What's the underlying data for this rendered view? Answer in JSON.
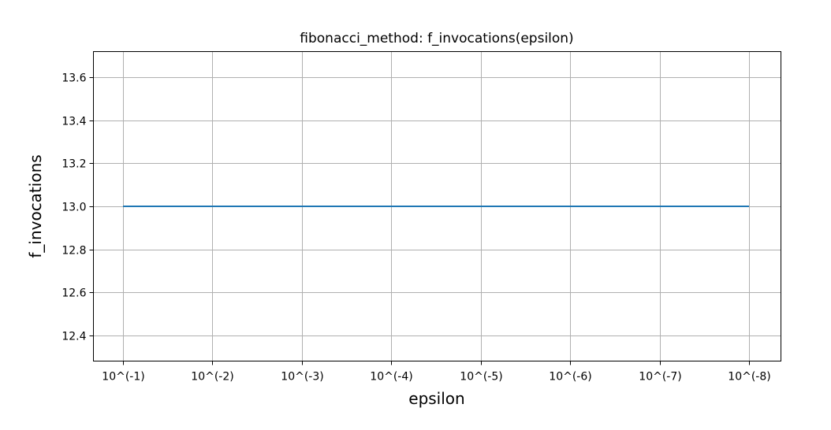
{
  "chart_data": {
    "type": "line",
    "title": "fibonacci_method: f_invocations(epsilon)",
    "xlabel": "epsilon",
    "ylabel": "f_invocations",
    "categories": [
      "10^(-1)",
      "10^(-2)",
      "10^(-3)",
      "10^(-4)",
      "10^(-5)",
      "10^(-6)",
      "10^(-7)",
      "10^(-8)"
    ],
    "series": [
      {
        "values": [
          13,
          13,
          13,
          13,
          13,
          13,
          13,
          13
        ],
        "color": "#1f77b4"
      }
    ],
    "yticks": [
      "12.4",
      "12.6",
      "12.8",
      "13.0",
      "13.2",
      "13.4",
      "13.6"
    ],
    "ylim": [
      12.28,
      13.72
    ],
    "grid": true,
    "legend": "none"
  }
}
